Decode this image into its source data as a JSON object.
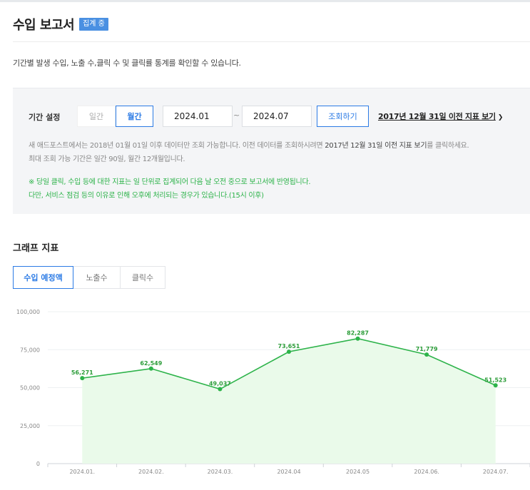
{
  "header": {
    "title": "수입 보고서",
    "badge": "집계 중"
  },
  "description": "기간별 발생 수입, 노출 수,클릭 수 및 클릭률 통계를 확인할 수 있습니다.",
  "filter": {
    "label": "기간 설정",
    "segments": {
      "daily": "일간",
      "monthly": "월간",
      "selected": "월간"
    },
    "start_date": "2024.01",
    "end_date": "2024.07",
    "separator": "~",
    "search_button": "조회하기",
    "legacy_link": "2017년 12월 31일 이전 지표 보기",
    "notice_1a": "새 애드포스트에서는 2018년 01월 01일 이후 데이터만 조회 가능합니다. 이전 데이터를 조회하시려면 ",
    "notice_1b": "2017년 12월 31일 이전 지표 보기",
    "notice_1c": "를 클릭하세요.",
    "notice_2": "최대 조회 가능 기간은 일간 90일, 월간 12개월입니다.",
    "green_1": "※ 당일 클릭, 수입 등에 대한 지표는 일 단위로 집계되어 다음 날 오전 중으로 보고서에 반영됩니다.",
    "green_2": "다만, 서비스 점검 등의 이유로 인해 오후에 처리되는 경우가 있습니다.(15시 이후)"
  },
  "graph": {
    "section_title": "그래프 지표",
    "tabs": [
      "수입 예정액",
      "노출수",
      "클릭수"
    ],
    "active_tab": "수입 예정액"
  },
  "colors": {
    "accent": "#2c7be5",
    "line": "#2db34a",
    "area": "#eafaea"
  },
  "chart_data": {
    "type": "area",
    "x": [
      "2024.01.",
      "2024.02.",
      "2024.03.",
      "2024.04",
      "2024.05",
      "2024.06.",
      "2024.07."
    ],
    "values": [
      56271,
      62549,
      49037,
      73651,
      82287,
      71779,
      51523
    ],
    "data_labels": [
      "56,271",
      "62,549",
      "49,037",
      "73,651",
      "82,287",
      "71,779",
      "51,523"
    ],
    "yticks": [
      "100,000",
      "75,000",
      "50,000",
      "25,000",
      "0"
    ],
    "ylim": [
      0,
      100000
    ],
    "grid": true
  }
}
